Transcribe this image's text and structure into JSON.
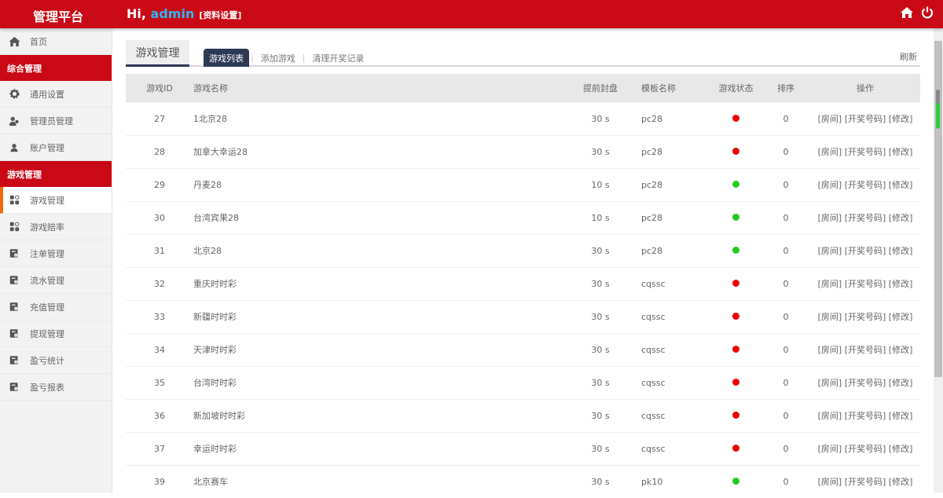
{
  "header": {
    "brand": "管理平台",
    "greeting": "Hi,",
    "user": "admin",
    "profile": "[资料设置]"
  },
  "sidebar": {
    "home": "首页",
    "sections": [
      {
        "label": "综合管理",
        "items": [
          {
            "label": "通用设置",
            "icon": "gear-icon"
          },
          {
            "label": "管理员管理",
            "icon": "users-icon"
          },
          {
            "label": "账户管理",
            "icon": "user-icon"
          }
        ]
      },
      {
        "label": "游戏管理",
        "items": [
          {
            "label": "游戏管理",
            "icon": "apps-icon",
            "active": true
          },
          {
            "label": "游戏赔率",
            "icon": "apps-icon"
          },
          {
            "label": "注单管理",
            "icon": "ledger-icon"
          },
          {
            "label": "流水管理",
            "icon": "ledger-icon"
          },
          {
            "label": "充值管理",
            "icon": "ledger-icon"
          },
          {
            "label": "提现管理",
            "icon": "ledger-icon"
          },
          {
            "label": "盈亏统计",
            "icon": "ledger-icon"
          },
          {
            "label": "盈亏报表",
            "icon": "ledger-icon"
          }
        ]
      }
    ]
  },
  "main": {
    "title": "游戏管理",
    "tabs": [
      "游戏列表",
      "添加游戏",
      "清理开奖记录"
    ],
    "refresh": "刷新"
  },
  "table": {
    "columns": [
      "游戏ID",
      "游戏名称",
      "提前封盘",
      "模板名称",
      "游戏状态",
      "排序",
      "操作"
    ],
    "actions": [
      "[房间]",
      "[开奖号码]",
      "[修改]"
    ],
    "status_colors": {
      "on": "#22cc22",
      "off": "#ee0000"
    },
    "rows": [
      {
        "id": "27",
        "name": "1北京28",
        "close": "30 s",
        "tpl": "pc28",
        "status": "off",
        "sort": "0"
      },
      {
        "id": "28",
        "name": "加拿大幸运28",
        "close": "30 s",
        "tpl": "pc28",
        "status": "off",
        "sort": "0"
      },
      {
        "id": "29",
        "name": "丹麦28",
        "close": "10 s",
        "tpl": "pc28",
        "status": "on",
        "sort": "0"
      },
      {
        "id": "30",
        "name": "台湾宾果28",
        "close": "10 s",
        "tpl": "pc28",
        "status": "on",
        "sort": "0"
      },
      {
        "id": "31",
        "name": "北京28",
        "close": "30 s",
        "tpl": "pc28",
        "status": "on",
        "sort": "0"
      },
      {
        "id": "32",
        "name": "重庆时时彩",
        "close": "30 s",
        "tpl": "cqssc",
        "status": "off",
        "sort": "0"
      },
      {
        "id": "33",
        "name": "新疆时时彩",
        "close": "30 s",
        "tpl": "cqssc",
        "status": "off",
        "sort": "0"
      },
      {
        "id": "34",
        "name": "天津时时彩",
        "close": "30 s",
        "tpl": "cqssc",
        "status": "off",
        "sort": "0"
      },
      {
        "id": "35",
        "name": "台湾时时彩",
        "close": "30 s",
        "tpl": "cqssc",
        "status": "off",
        "sort": "0"
      },
      {
        "id": "36",
        "name": "新加坡时时彩",
        "close": "30 s",
        "tpl": "cqssc",
        "status": "off",
        "sort": "0"
      },
      {
        "id": "37",
        "name": "幸运时时彩",
        "close": "30 s",
        "tpl": "cqssc",
        "status": "off",
        "sort": "0"
      },
      {
        "id": "39",
        "name": "北京赛车",
        "close": "30 s",
        "tpl": "pk10",
        "status": "on",
        "sort": "0"
      }
    ]
  }
}
